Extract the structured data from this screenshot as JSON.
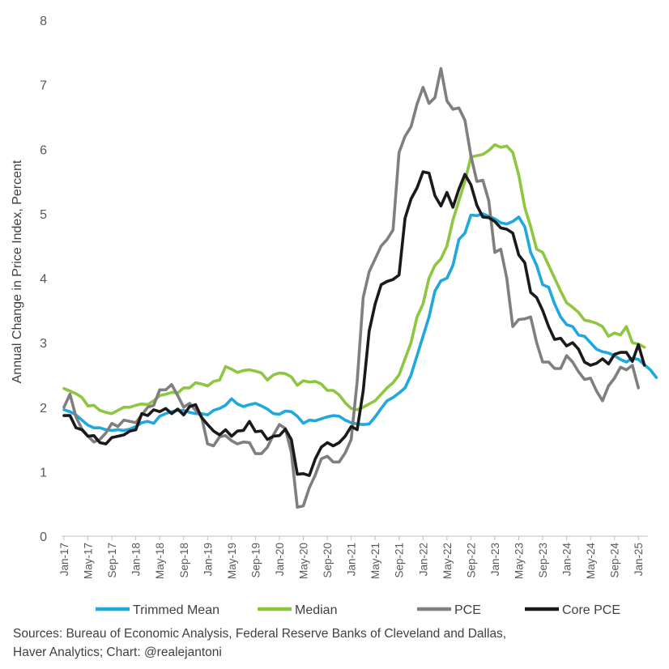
{
  "chart_data": {
    "type": "line",
    "title": "",
    "xlabel": "",
    "ylabel": "Annual Change in Price Index, Percent",
    "ylim": [
      0,
      8
    ],
    "yticks": [
      "0",
      "1",
      "2",
      "3",
      "4",
      "5",
      "6",
      "7",
      "8"
    ],
    "xtick_labels": [
      "Jan-17",
      "May-17",
      "Sep-17",
      "Jan-18",
      "May-18",
      "Sep-18",
      "Jan-19",
      "May-19",
      "Sep-19",
      "Jan-20",
      "May-20",
      "Sep-20",
      "Jan-21",
      "May-21",
      "Sep-21",
      "Jan-22",
      "May-22",
      "Sep-22",
      "Jan-23",
      "May-23",
      "Sep-23",
      "Jan-24",
      "May-24",
      "Sep-24",
      "Jan-25"
    ],
    "x_start": "Jan-17",
    "grid": false,
    "legend_position": "bottom",
    "series": [
      {
        "name": "Trimmed Mean",
        "color": "#1FA8E0",
        "values": [
          1.96,
          1.93,
          1.88,
          1.8,
          1.72,
          1.68,
          1.68,
          1.65,
          1.64,
          1.65,
          1.64,
          1.66,
          1.7,
          1.76,
          1.78,
          1.75,
          1.86,
          1.9,
          1.93,
          1.95,
          1.95,
          1.92,
          1.9,
          1.9,
          1.88,
          1.95,
          1.98,
          2.03,
          2.13,
          2.05,
          2.01,
          2.04,
          2.06,
          2.02,
          1.97,
          1.9,
          1.89,
          1.94,
          1.93,
          1.86,
          1.75,
          1.8,
          1.79,
          1.82,
          1.85,
          1.87,
          1.86,
          1.8,
          1.76,
          1.74,
          1.73,
          1.74,
          1.85,
          1.98,
          2.1,
          2.15,
          2.22,
          2.3,
          2.5,
          2.8,
          3.1,
          3.4,
          3.8,
          3.96,
          4.0,
          4.2,
          4.6,
          4.7,
          4.98,
          4.97,
          5.0,
          4.96,
          4.92,
          4.86,
          4.84,
          4.88,
          4.95,
          4.8,
          4.4,
          4.2,
          3.9,
          3.86,
          3.6,
          3.4,
          3.28,
          3.25,
          3.12,
          3.1,
          3.0,
          2.9,
          2.86,
          2.84,
          2.8,
          2.74,
          2.7,
          2.76,
          2.74,
          2.66,
          2.58,
          2.46
        ]
      },
      {
        "name": "Median",
        "color": "#8DC63F",
        "values": [
          2.29,
          2.25,
          2.21,
          2.15,
          2.02,
          2.03,
          1.95,
          1.92,
          1.9,
          1.95,
          2.0,
          2.0,
          2.03,
          2.05,
          2.04,
          2.1,
          2.18,
          2.2,
          2.23,
          2.22,
          2.3,
          2.3,
          2.38,
          2.36,
          2.33,
          2.4,
          2.42,
          2.63,
          2.59,
          2.54,
          2.57,
          2.58,
          2.56,
          2.53,
          2.42,
          2.5,
          2.53,
          2.52,
          2.47,
          2.34,
          2.41,
          2.39,
          2.4,
          2.36,
          2.26,
          2.26,
          2.19,
          2.07,
          1.98,
          1.96,
          2.0,
          2.05,
          2.1,
          2.2,
          2.3,
          2.38,
          2.5,
          2.75,
          3.0,
          3.4,
          3.6,
          4.0,
          4.2,
          4.3,
          4.5,
          4.9,
          5.2,
          5.5,
          5.88,
          5.9,
          5.92,
          5.98,
          6.07,
          6.03,
          6.05,
          5.95,
          5.6,
          5.1,
          4.8,
          4.45,
          4.4,
          4.2,
          4.0,
          3.8,
          3.62,
          3.55,
          3.47,
          3.35,
          3.33,
          3.3,
          3.25,
          3.1,
          3.15,
          3.12,
          3.25,
          3.0,
          2.98,
          2.93
        ]
      },
      {
        "name": "PCE",
        "color": "#7F7F7F",
        "values": [
          2.0,
          2.2,
          1.85,
          1.66,
          1.55,
          1.46,
          1.5,
          1.6,
          1.75,
          1.7,
          1.8,
          1.78,
          1.76,
          1.88,
          2.0,
          2.03,
          2.27,
          2.27,
          2.35,
          2.18,
          2.0,
          2.06,
          1.95,
          1.85,
          1.43,
          1.4,
          1.54,
          1.56,
          1.48,
          1.43,
          1.46,
          1.45,
          1.28,
          1.28,
          1.38,
          1.57,
          1.73,
          1.67,
          1.3,
          0.45,
          0.47,
          0.75,
          0.95,
          1.2,
          1.24,
          1.15,
          1.15,
          1.29,
          1.5,
          2.4,
          3.7,
          4.1,
          4.3,
          4.5,
          4.6,
          4.75,
          5.95,
          6.2,
          6.35,
          6.7,
          6.96,
          6.71,
          6.8,
          7.25,
          6.75,
          6.62,
          6.64,
          6.45,
          5.9,
          5.5,
          5.52,
          5.2,
          4.4,
          4.45,
          4.0,
          3.25,
          3.36,
          3.37,
          3.4,
          3.0,
          2.7,
          2.7,
          2.6,
          2.6,
          2.8,
          2.7,
          2.55,
          2.43,
          2.45,
          2.25,
          2.1,
          2.33,
          2.45,
          2.62,
          2.58,
          2.65,
          2.3
        ]
      },
      {
        "name": "Core PCE",
        "color": "#1A1A1A",
        "values": [
          1.87,
          1.87,
          1.68,
          1.65,
          1.55,
          1.56,
          1.45,
          1.43,
          1.53,
          1.55,
          1.57,
          1.63,
          1.65,
          1.9,
          1.87,
          1.96,
          1.93,
          1.98,
          1.9,
          1.97,
          1.88,
          2.01,
          2.04,
          1.84,
          1.73,
          1.63,
          1.57,
          1.65,
          1.55,
          1.63,
          1.64,
          1.78,
          1.62,
          1.63,
          1.5,
          1.55,
          1.56,
          1.66,
          1.5,
          0.96,
          0.97,
          0.94,
          1.2,
          1.38,
          1.45,
          1.4,
          1.45,
          1.55,
          1.7,
          1.65,
          2.25,
          3.18,
          3.6,
          3.9,
          3.95,
          3.98,
          4.05,
          4.93,
          5.23,
          5.4,
          5.65,
          5.63,
          5.28,
          5.12,
          5.33,
          5.1,
          5.38,
          5.61,
          5.45,
          5.13,
          4.95,
          4.94,
          4.88,
          4.78,
          4.76,
          4.7,
          4.36,
          4.24,
          3.78,
          3.7,
          3.5,
          3.25,
          3.05,
          3.07,
          2.95,
          3.0,
          2.9,
          2.7,
          2.65,
          2.68,
          2.75,
          2.67,
          2.82,
          2.85,
          2.85,
          2.71,
          2.97,
          2.65
        ]
      }
    ]
  },
  "sources": {
    "line1": "Sources: Bureau of Economic Analysis, Federal Reserve Banks of Cleveland and Dallas,",
    "line2": "Haver Analytics; Chart: @realejantoni"
  }
}
